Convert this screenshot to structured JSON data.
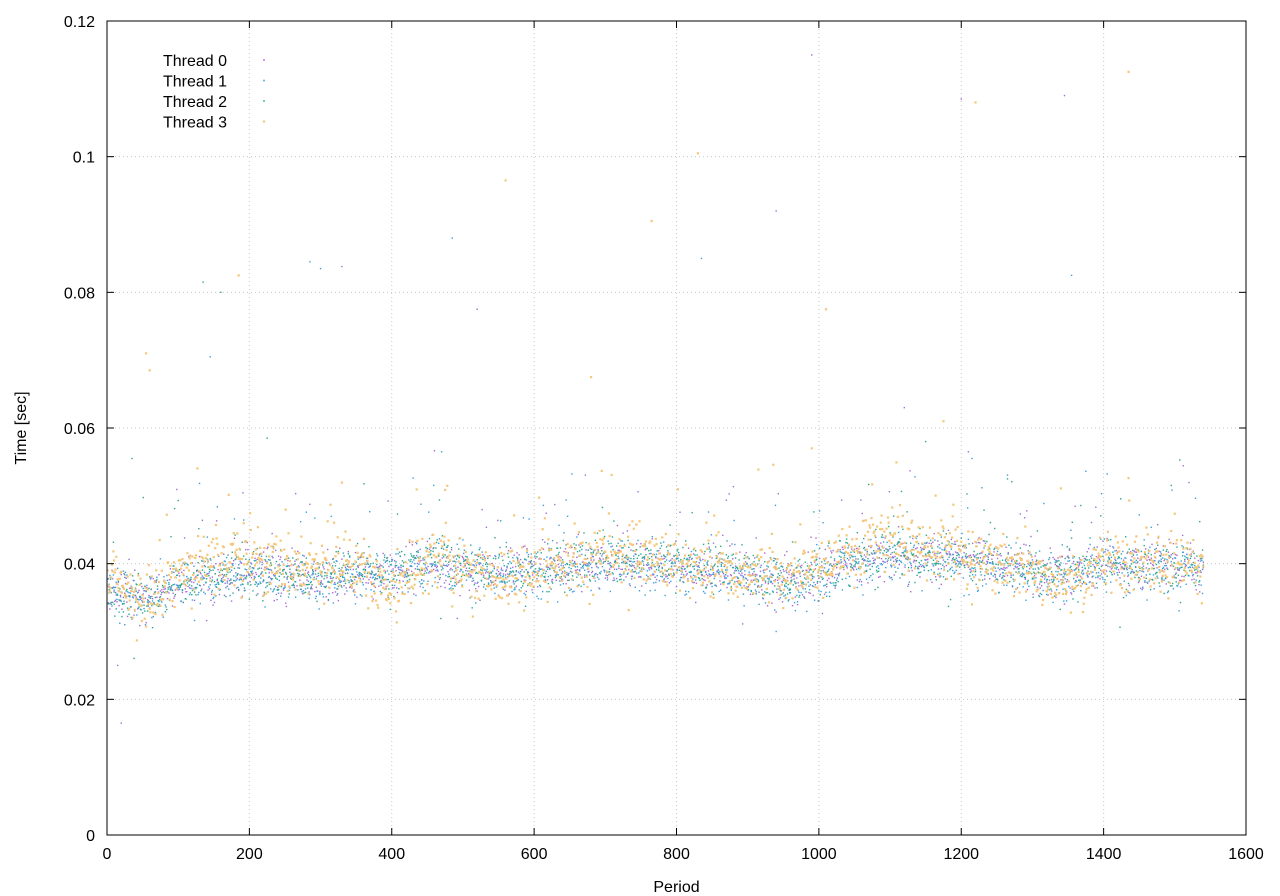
{
  "chart_data": {
    "type": "scatter",
    "title": "",
    "xlabel": "Period",
    "ylabel": "Time [sec]",
    "xlim": [
      0,
      1600
    ],
    "ylim": [
      0,
      0.12
    ],
    "x_ticks": [
      0,
      200,
      400,
      600,
      800,
      1000,
      1200,
      1400,
      1600
    ],
    "x_tick_labels": [
      "0",
      "200",
      "400",
      "600",
      "800",
      "1000",
      "1200",
      "1400",
      "1600"
    ],
    "y_ticks": [
      0,
      0.02,
      0.04,
      0.06,
      0.08,
      0.1,
      0.12
    ],
    "y_tick_labels": [
      "0",
      "0.02",
      "0.04",
      "0.06",
      "0.08",
      "0.1",
      "0.12"
    ],
    "grid": true,
    "legend_position": "top-left",
    "x_range_of_points": [
      1,
      1540
    ],
    "series": [
      {
        "name": "Thread 0",
        "color": "#a86ad4",
        "baseline": [
          [
            0,
            0.036
          ],
          [
            60,
            0.035
          ],
          [
            100,
            0.037
          ],
          [
            200,
            0.0385
          ],
          [
            300,
            0.038
          ],
          [
            400,
            0.039
          ],
          [
            460,
            0.0405
          ],
          [
            500,
            0.0395
          ],
          [
            600,
            0.039
          ],
          [
            700,
            0.0405
          ],
          [
            800,
            0.0395
          ],
          [
            900,
            0.0385
          ],
          [
            950,
            0.0375
          ],
          [
            1000,
            0.038
          ],
          [
            1050,
            0.0405
          ],
          [
            1100,
            0.041
          ],
          [
            1200,
            0.041
          ],
          [
            1300,
            0.039
          ],
          [
            1350,
            0.0385
          ],
          [
            1400,
            0.04
          ],
          [
            1540,
            0.04
          ]
        ],
        "spread": 0.0025,
        "outliers": [
          [
            990,
            0.115
          ],
          [
            1345,
            0.109
          ],
          [
            1200,
            0.1085
          ],
          [
            940,
            0.092
          ],
          [
            520,
            0.0775
          ],
          [
            330,
            0.0838
          ],
          [
            20,
            0.0165
          ],
          [
            15,
            0.025
          ],
          [
            1120,
            0.063
          ],
          [
            1210,
            0.0565
          ]
        ]
      },
      {
        "name": "Thread 1",
        "color": "#3aa0dc",
        "baseline": [
          [
            0,
            0.0365
          ],
          [
            60,
            0.0345
          ],
          [
            100,
            0.0375
          ],
          [
            200,
            0.038
          ],
          [
            300,
            0.0375
          ],
          [
            400,
            0.0385
          ],
          [
            460,
            0.04
          ],
          [
            500,
            0.039
          ],
          [
            600,
            0.0385
          ],
          [
            700,
            0.04
          ],
          [
            800,
            0.039
          ],
          [
            900,
            0.038
          ],
          [
            950,
            0.037
          ],
          [
            1000,
            0.0375
          ],
          [
            1050,
            0.04
          ],
          [
            1100,
            0.0405
          ],
          [
            1200,
            0.0405
          ],
          [
            1300,
            0.0385
          ],
          [
            1350,
            0.038
          ],
          [
            1400,
            0.0395
          ],
          [
            1540,
            0.0395
          ]
        ],
        "spread": 0.0025,
        "outliers": [
          [
            285,
            0.0845
          ],
          [
            300,
            0.0835
          ],
          [
            835,
            0.085
          ],
          [
            485,
            0.088
          ],
          [
            1355,
            0.0825
          ],
          [
            145,
            0.0705
          ],
          [
            1215,
            0.0555
          ],
          [
            470,
            0.0565
          ],
          [
            940,
            0.03
          ],
          [
            25,
            0.031
          ]
        ]
      },
      {
        "name": "Thread 2",
        "color": "#2aa88a",
        "baseline": [
          [
            0,
            0.0355
          ],
          [
            60,
            0.0345
          ],
          [
            100,
            0.037
          ],
          [
            200,
            0.0385
          ],
          [
            300,
            0.0385
          ],
          [
            400,
            0.039
          ],
          [
            460,
            0.0405
          ],
          [
            500,
            0.0395
          ],
          [
            600,
            0.039
          ],
          [
            700,
            0.041
          ],
          [
            800,
            0.04
          ],
          [
            900,
            0.039
          ],
          [
            950,
            0.0375
          ],
          [
            1000,
            0.0385
          ],
          [
            1050,
            0.041
          ],
          [
            1100,
            0.0415
          ],
          [
            1200,
            0.041
          ],
          [
            1300,
            0.039
          ],
          [
            1350,
            0.0385
          ],
          [
            1400,
            0.04
          ],
          [
            1540,
            0.04
          ]
        ],
        "spread": 0.0025,
        "outliers": [
          [
            160,
            0.08
          ],
          [
            135,
            0.0815
          ],
          [
            225,
            0.0585
          ],
          [
            1150,
            0.058
          ],
          [
            35,
            0.0555
          ],
          [
            1265,
            0.0525
          ]
        ]
      },
      {
        "name": "Thread 3",
        "color": "#f5c77a",
        "baseline": [
          [
            0,
            0.038
          ],
          [
            60,
            0.0345
          ],
          [
            100,
            0.0385
          ],
          [
            150,
            0.041
          ],
          [
            200,
            0.0405
          ],
          [
            300,
            0.0395
          ],
          [
            360,
            0.039
          ],
          [
            400,
            0.0365
          ],
          [
            430,
            0.0375
          ],
          [
            460,
            0.0415
          ],
          [
            500,
            0.039
          ],
          [
            560,
            0.0375
          ],
          [
            600,
            0.039
          ],
          [
            700,
            0.0415
          ],
          [
            800,
            0.0395
          ],
          [
            900,
            0.039
          ],
          [
            950,
            0.0385
          ],
          [
            1000,
            0.0395
          ],
          [
            1050,
            0.0425
          ],
          [
            1100,
            0.0435
          ],
          [
            1200,
            0.0415
          ],
          [
            1300,
            0.039
          ],
          [
            1350,
            0.037
          ],
          [
            1400,
            0.0405
          ],
          [
            1540,
            0.0395
          ]
        ],
        "spread": 0.003,
        "outliers": [
          [
            55,
            0.071
          ],
          [
            60,
            0.0685
          ],
          [
            1435,
            0.1125
          ],
          [
            1220,
            0.108
          ],
          [
            830,
            0.1005
          ],
          [
            560,
            0.0965
          ],
          [
            765,
            0.0905
          ],
          [
            1010,
            0.0775
          ],
          [
            680,
            0.0675
          ],
          [
            185,
            0.0825
          ],
          [
            1175,
            0.061
          ],
          [
            990,
            0.057
          ],
          [
            1215,
            0.034
          ]
        ]
      }
    ]
  }
}
